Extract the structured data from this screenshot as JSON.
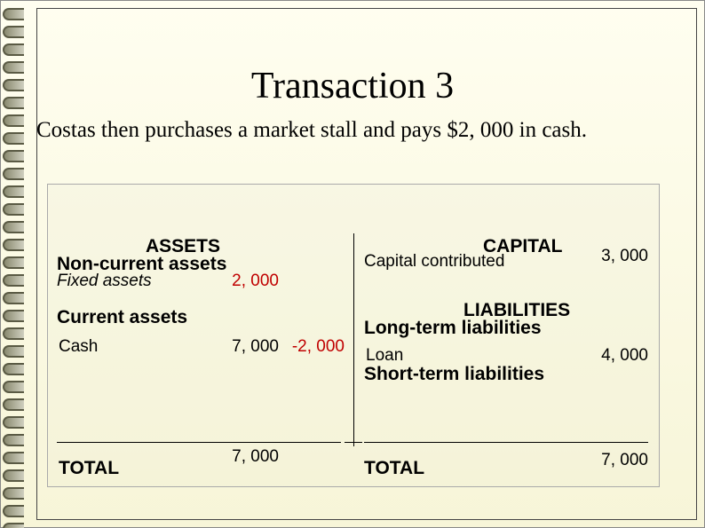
{
  "title": "Transaction 3",
  "subtitle": "Costas then purchases a market stall and pays $2, 000 in cash.",
  "left": {
    "section": "ASSETS",
    "sub1": "Non-current assets",
    "row1_label": "Fixed assets",
    "row1_val": "2, 000",
    "sub2": "Current assets",
    "row2_label": "Cash",
    "row2_val": "7, 000",
    "row2_adj": "-2, 000",
    "total_label": "TOTAL",
    "total_val": "7, 000"
  },
  "right": {
    "section": "CAPITAL",
    "row1_label": "Capital contributed",
    "row1_val": "3, 000",
    "section2": "LIABILITIES",
    "sub1": "Long-term liabilities",
    "row2_label": "Loan",
    "row2_val": "4, 000",
    "sub2": "Short-term liabilities",
    "total_label": "TOTAL",
    "total_val": "7, 000"
  },
  "colors": {
    "accent_red": "#c00000",
    "text": "#000000",
    "bg_top": "#fffef0",
    "bg_bottom": "#f7f5d8"
  }
}
